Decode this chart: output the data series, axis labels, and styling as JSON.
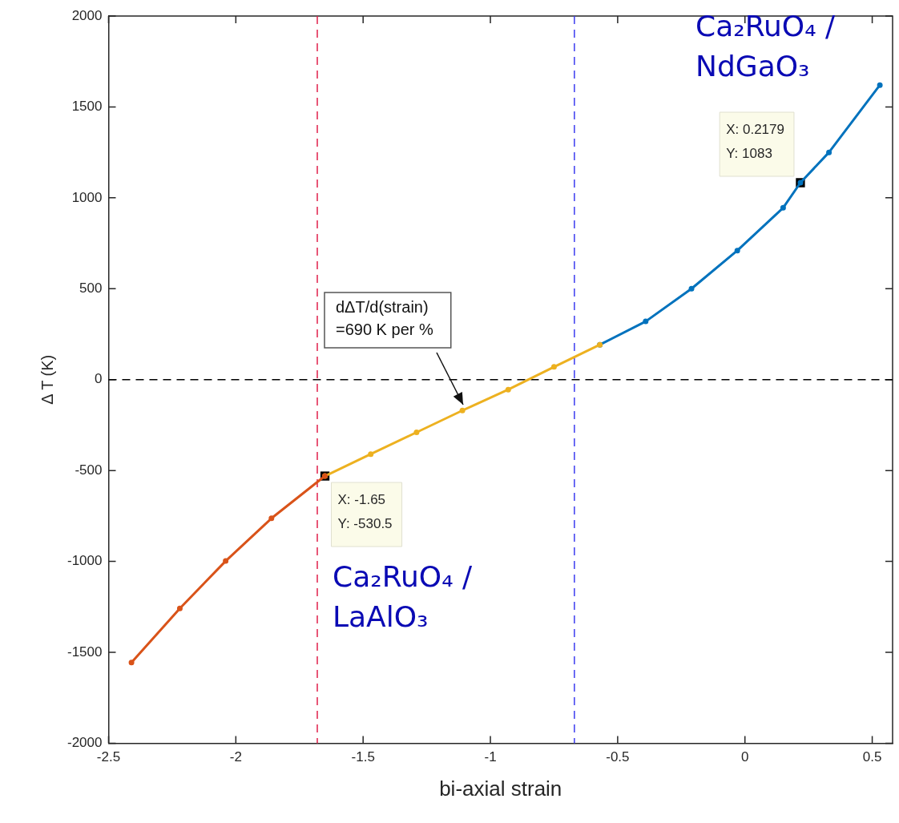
{
  "chart_data": {
    "type": "line",
    "xlabel": "bi-axial strain",
    "ylabel": "Δ T (K)",
    "xlim": [
      -2.5,
      0.58
    ],
    "xticks": [
      -2.5,
      -2,
      -1.5,
      -1,
      -0.5,
      0,
      0.5
    ],
    "ylim": [
      -2000,
      2000
    ],
    "yticks": [
      -2000,
      -1500,
      -1000,
      -500,
      0,
      500,
      1000,
      1500,
      2000
    ],
    "grid": false,
    "legend": false,
    "line_style": "solid",
    "series": [
      {
        "color": "#d95319",
        "marker": "circle",
        "x": [
          -2.41,
          -2.22,
          -2.04,
          -1.86,
          -1.65
        ],
        "values": [
          -1556,
          -1259,
          -998,
          -763,
          -530.5
        ]
      },
      {
        "color": "#edb120",
        "marker": "circle",
        "x": [
          -1.65,
          -1.47,
          -1.29,
          -1.11,
          -0.93,
          -0.75,
          -0.57
        ],
        "values": [
          -530.5,
          -410,
          -290,
          -170,
          -55,
          70,
          192
        ]
      },
      {
        "color": "#0072bd",
        "marker": "circle",
        "x": [
          -0.57,
          -0.39,
          -0.21,
          -0.03,
          0.15,
          0.2179,
          0.33,
          0.53
        ],
        "values": [
          192,
          320,
          500,
          710,
          945,
          1083,
          1250,
          1620
        ]
      },
      {
        "type": "scatter",
        "color": "#000000",
        "marker": "square",
        "x": [
          -1.65,
          0.2179
        ],
        "values": [
          -530.5,
          1083
        ]
      }
    ],
    "ref_lines": [
      {
        "axis": "y",
        "value": 0,
        "color": "#000000",
        "line_style": "dashed"
      },
      {
        "axis": "x",
        "value": -1.68,
        "color": "#e0204a",
        "line_style": "dashed"
      },
      {
        "axis": "x",
        "value": -0.67,
        "color": "#3a3af0",
        "line_style": "dashed"
      }
    ],
    "annotations": [
      {
        "text": "X: -1.65\nY: -530.5",
        "x": -1.65,
        "y": -530.5
      },
      {
        "text": "X: 0.2179\nY: 1083",
        "x": 0.2179,
        "y": 1083
      },
      "dΔT/d(strain)\n=690 K per %",
      "Ca₂RuO₄ /\nLaAlO₃",
      "Ca₂RuO₄ /\nNdGaO₃"
    ]
  }
}
